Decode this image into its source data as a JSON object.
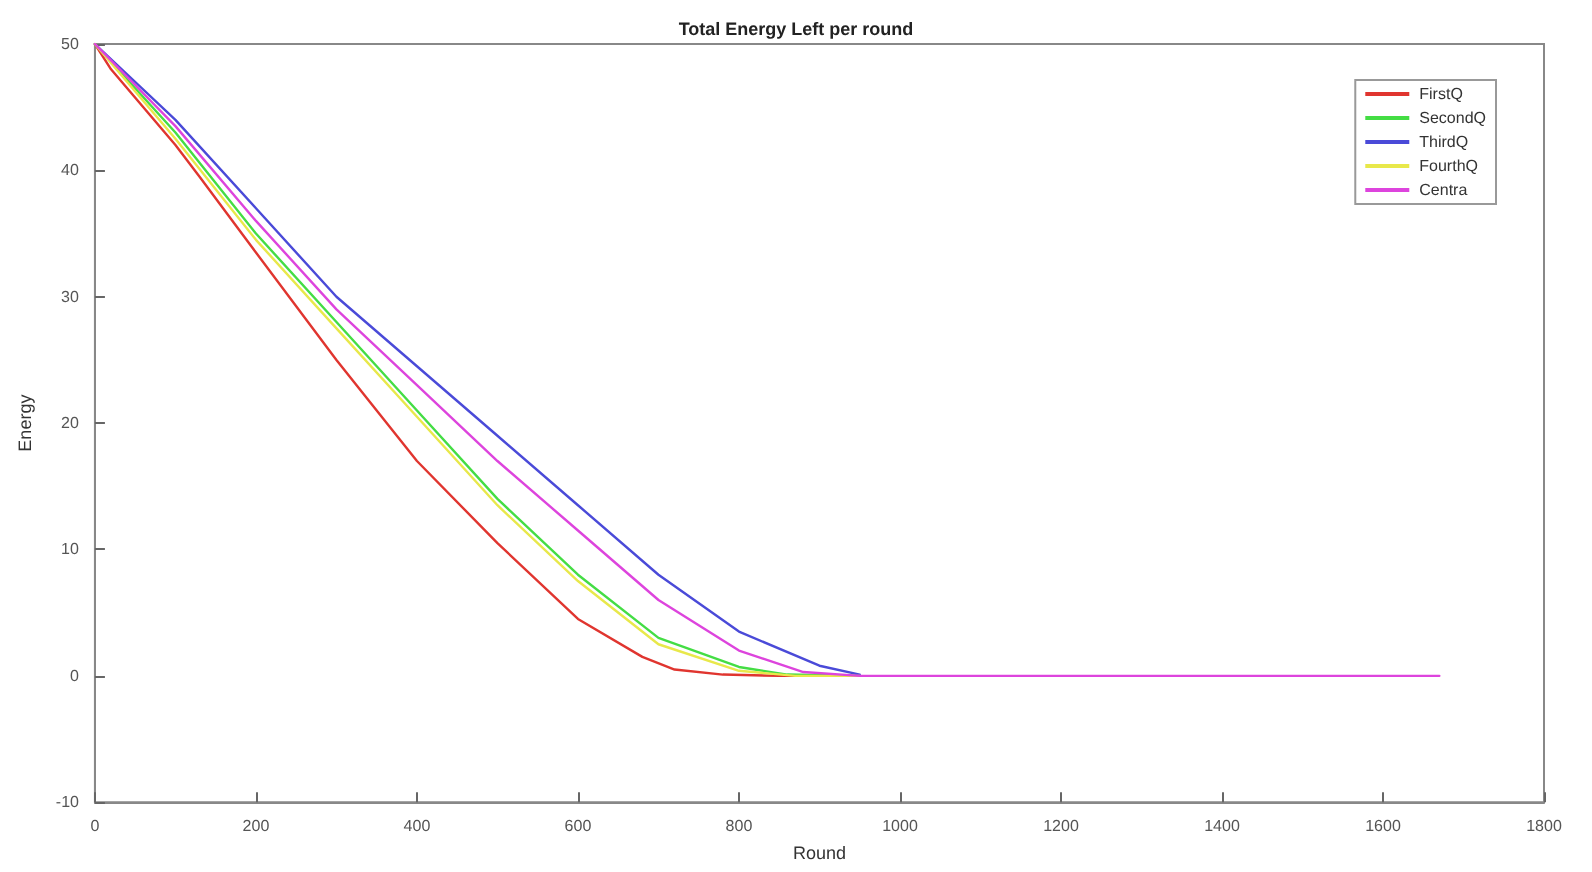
{
  "chart_data": {
    "type": "line",
    "title": "Total Energy Left per round",
    "xlabel": "Round",
    "ylabel": "Energy",
    "xlim": [
      0,
      1800
    ],
    "xticks": [
      0,
      200,
      400,
      600,
      800,
      1000,
      1200,
      1400,
      1600,
      1800
    ],
    "ylim": [
      -10,
      50
    ],
    "yticks": [
      -10,
      0,
      10,
      20,
      30,
      40,
      50
    ],
    "grid": false,
    "legend": "top right",
    "marker": "none",
    "line_style": "solid",
    "series": [
      {
        "name": "FirstQ",
        "color": "#e0352f",
        "x": [
          0,
          20,
          100,
          130,
          200,
          300,
          400,
          500,
          600,
          680,
          720,
          780,
          850,
          950
        ],
        "values": [
          50,
          48,
          42,
          39.5,
          33.5,
          25,
          17,
          10.5,
          4.5,
          1.5,
          0.5,
          0.1,
          0,
          0
        ]
      },
      {
        "name": "SecondQ",
        "color": "#44dd44",
        "x": [
          0,
          100,
          200,
          300,
          400,
          500,
          600,
          700,
          800,
          860,
          950
        ],
        "values": [
          50,
          43,
          35,
          28,
          21,
          14,
          8,
          3,
          0.7,
          0.1,
          0
        ]
      },
      {
        "name": "ThirdQ",
        "color": "#4a4ad8",
        "x": [
          0,
          100,
          200,
          300,
          400,
          500,
          600,
          700,
          800,
          900,
          950
        ],
        "values": [
          50,
          44,
          37,
          30,
          24.5,
          19,
          13.5,
          8,
          3.5,
          0.8,
          0.1
        ]
      },
      {
        "name": "FourthQ",
        "color": "#e8e84a",
        "x": [
          0,
          100,
          200,
          300,
          400,
          500,
          600,
          700,
          800,
          870,
          950
        ],
        "values": [
          50,
          42.5,
          34.5,
          27.5,
          20.5,
          13.5,
          7.5,
          2.5,
          0.4,
          0,
          0
        ]
      },
      {
        "name": "Centra",
        "color": "#dd44dd",
        "x": [
          0,
          100,
          200,
          300,
          400,
          500,
          600,
          700,
          800,
          880,
          950,
          1670
        ],
        "values": [
          50,
          43.5,
          36,
          29,
          23,
          17,
          11.5,
          6,
          2,
          0.3,
          0,
          0
        ]
      }
    ]
  }
}
